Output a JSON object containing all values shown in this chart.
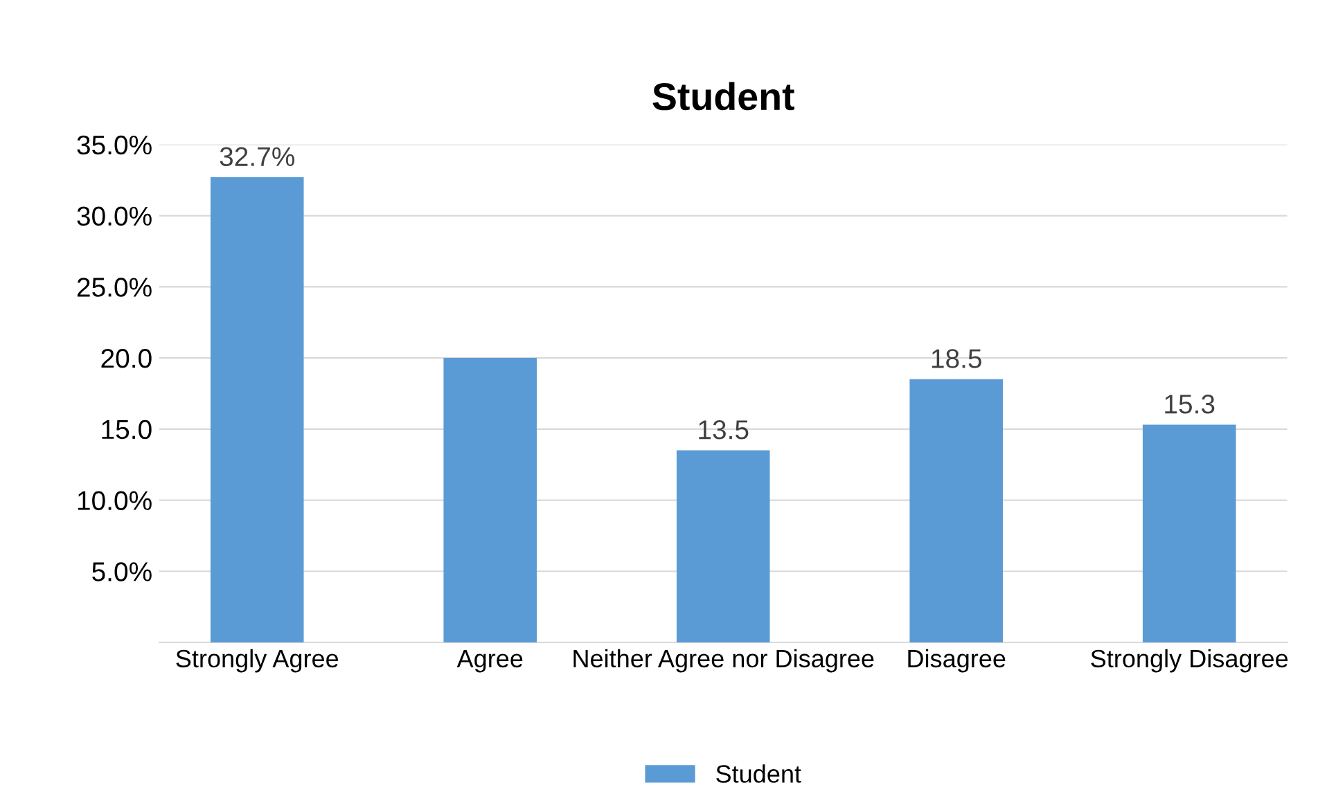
{
  "chart_data": {
    "type": "bar",
    "title": "Student",
    "categories": [
      "Strongly Agree",
      "Agree",
      "Neither Agree nor Disagree",
      "Disagree",
      "Strongly Disagree"
    ],
    "series": [
      {
        "name": "Student",
        "color": "#5b9bd5",
        "values": [
          32.7,
          20.0,
          13.5,
          18.5,
          15.3
        ],
        "value_labels": [
          "32.7%",
          null,
          "13.5",
          "18.5",
          "15.3"
        ]
      }
    ],
    "ylim": [
      0,
      35
    ],
    "yticks": [
      {
        "value": 0,
        "label": null
      },
      {
        "value": 5,
        "label": "5.0%"
      },
      {
        "value": 10,
        "label": "10.0%"
      },
      {
        "value": 15,
        "label": "15.0"
      },
      {
        "value": 20,
        "label": "20.0"
      },
      {
        "value": 25,
        "label": "25.0%"
      },
      {
        "value": 30,
        "label": "30.0%"
      },
      {
        "value": 35,
        "label": "35.0%"
      }
    ],
    "grid": "y",
    "legend": "bottom"
  }
}
